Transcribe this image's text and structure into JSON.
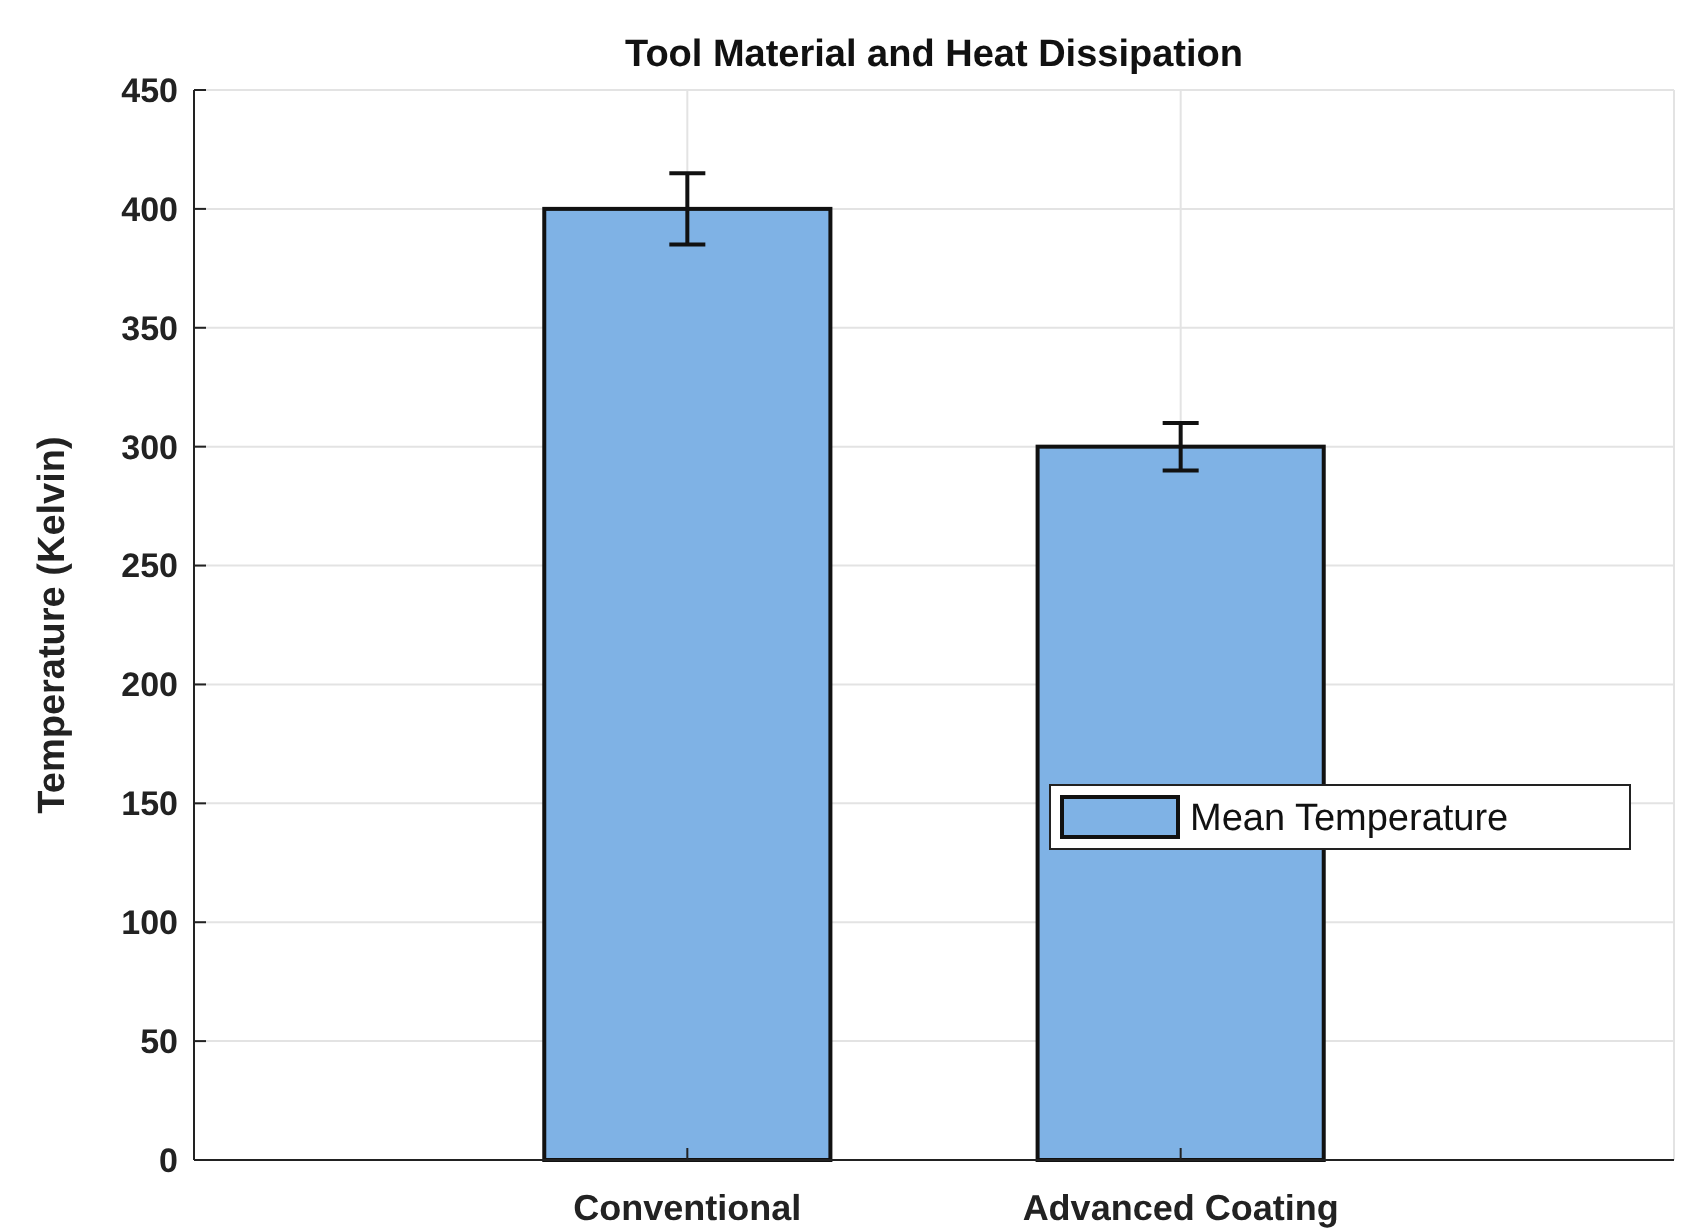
{
  "chart_data": {
    "type": "bar",
    "title": "Tool Material and Heat Dissipation",
    "ylabel": "Temperature (Kelvin)",
    "categories": [
      "Conventional",
      "Advanced Coating"
    ],
    "series": [
      {
        "name": "Mean Temperature",
        "color": "#7fb2e5",
        "values": [
          400,
          300
        ],
        "errors": [
          15,
          10
        ]
      }
    ],
    "ylim": [
      0,
      450
    ],
    "yticks": [
      0,
      50,
      100,
      150,
      200,
      250,
      300,
      350,
      400,
      450
    ],
    "grid": true,
    "legend": "right"
  }
}
